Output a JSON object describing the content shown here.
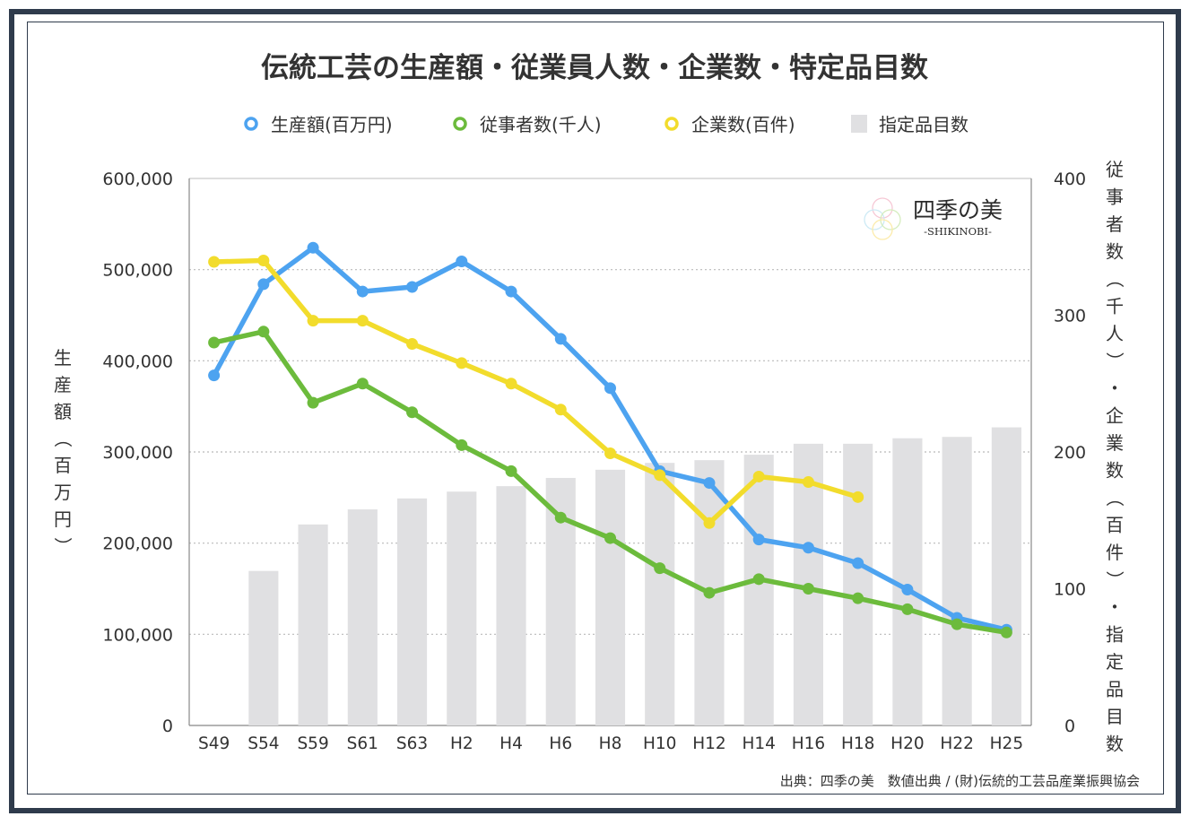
{
  "chart_data": {
    "type": "bar+line",
    "title": "伝統工芸の生産額・従業員人数・企業数・特定品目数",
    "categories": [
      "S49",
      "S54",
      "S59",
      "S61",
      "S63",
      "H2",
      "H4",
      "H6",
      "H8",
      "H10",
      "H12",
      "H14",
      "H16",
      "H18",
      "H20",
      "H22",
      "H25"
    ],
    "series": [
      {
        "name": "生産額(百万円)",
        "kind": "line",
        "axis": "left",
        "color": "#4da3f0",
        "values": [
          384000,
          484000,
          524000,
          476000,
          481000,
          509000,
          476000,
          424000,
          370000,
          279000,
          266000,
          204000,
          195000,
          178000,
          149000,
          118000,
          105000
        ]
      },
      {
        "name": "従事者数(千人)",
        "kind": "line",
        "axis": "right",
        "color": "#6cbb3c",
        "values": [
          280,
          288,
          236,
          250,
          229,
          205,
          186,
          152,
          137,
          115,
          97,
          107,
          100,
          93,
          85,
          74,
          68
        ]
      },
      {
        "name": "企業数(百件)",
        "kind": "line",
        "axis": "right",
        "color": "#f2dc2c",
        "values": [
          339,
          340,
          296,
          296,
          279,
          265,
          250,
          231,
          199,
          183,
          148,
          182,
          178,
          167,
          null,
          null,
          null
        ]
      },
      {
        "name": "指定品目数",
        "kind": "bar",
        "axis": "right",
        "color": "#e0e0e2",
        "values": [
          null,
          113,
          147,
          158,
          166,
          171,
          175,
          181,
          187,
          192,
          194,
          198,
          206,
          206,
          210,
          211,
          218
        ]
      }
    ],
    "left_axis": {
      "label": "生産額（百万円）",
      "min": 0,
      "max": 600000,
      "ticks": [
        "0",
        "100,000",
        "200,000",
        "300,000",
        "400,000",
        "500,000",
        "600,000"
      ],
      "tick_values": [
        0,
        100000,
        200000,
        300000,
        400000,
        500000,
        600000
      ]
    },
    "right_axis": {
      "label": "従事者数（千人）・企業数（百件）・指定品目数",
      "min": 0,
      "max": 400,
      "ticks": [
        "0",
        "100",
        "200",
        "300",
        "400"
      ],
      "tick_values": [
        0,
        100,
        200,
        300,
        400
      ]
    },
    "legend_position": "top-center",
    "watermark": {
      "title": "四季の美",
      "subtitle": "-SHIKINOBI-"
    },
    "source": "出典：四季の美　数値出典 / (財)伝統的工芸品産業振興協会"
  }
}
